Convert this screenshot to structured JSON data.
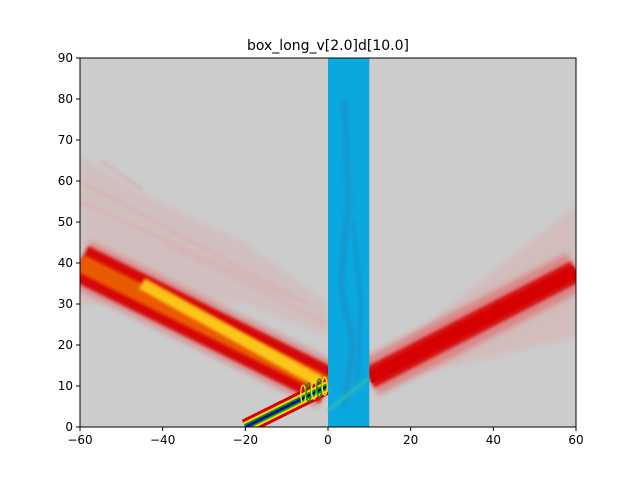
{
  "chart_data": {
    "type": "heatmap",
    "title": "box_long_v[2.0]d[10.0]",
    "xlabel": "",
    "ylabel": "",
    "xlim": [
      -60,
      60
    ],
    "ylim": [
      0,
      90
    ],
    "xticks": [
      -60,
      -40,
      -20,
      0,
      20,
      40,
      60
    ],
    "xtick_labels": [
      "−60",
      "−40",
      "−20",
      "0",
      "20",
      "40",
      "60"
    ],
    "yticks": [
      0,
      10,
      20,
      30,
      40,
      50,
      60,
      70,
      80,
      90
    ],
    "ytick_labels": [
      "0",
      "10",
      "20",
      "30",
      "40",
      "50",
      "60",
      "70",
      "80",
      "90"
    ],
    "grid": false,
    "colors": {
      "background": "#cccccc",
      "box": "#0aa8de",
      "box_dark": "#1e90c8",
      "low": "#d8b0b0",
      "mid": "#d60000",
      "high": "#ffd21e",
      "peak": "#00a000",
      "core": "#0000b4"
    },
    "box": {
      "x0": 0,
      "x1": 10,
      "y0": 0,
      "y1": 90
    },
    "beams": [
      {
        "name": "incident",
        "from": [
          -20,
          0
        ],
        "to": [
          0,
          10
        ],
        "width": 1.5,
        "intensity": 1.0
      },
      {
        "name": "reflected",
        "from": [
          0,
          10
        ],
        "to": [
          -60,
          40
        ],
        "width": 7,
        "intensity": 0.75
      },
      {
        "name": "transmitted",
        "from": [
          10,
          12
        ],
        "to": [
          60,
          38
        ],
        "width": 6,
        "intensity": 0.45
      }
    ]
  }
}
